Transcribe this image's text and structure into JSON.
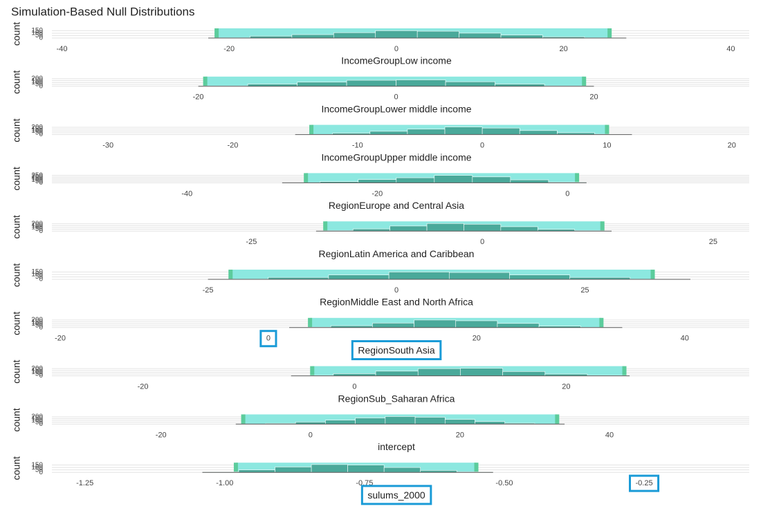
{
  "title": "Simulation-Based Null Distributions",
  "chart_data": [
    {
      "type": "histogram",
      "x_label": "IncomeGroupLow income",
      "y_label": "count",
      "xlim": [
        -41.2,
        42.2
      ],
      "xticks": [
        -40,
        -20,
        0,
        20,
        40
      ],
      "ylim": [
        0,
        170
      ],
      "yticks": [
        0,
        50,
        100,
        150
      ],
      "bins": [
        -22.5,
        -17.5,
        -12.5,
        -7.5,
        -2.5,
        2.5,
        7.5,
        12.5,
        17.5,
        22.5,
        27.5
      ],
      "counts": [
        5,
        40,
        70,
        110,
        150,
        140,
        100,
        60,
        25,
        5
      ],
      "color": "#4aa99a",
      "shade": [
        -21.5,
        25.5
      ],
      "shade_color": "#8ce8e0",
      "shade_edge_color": "#5ccc9c"
    },
    {
      "type": "histogram",
      "x_label": "IncomeGroupLower middle income",
      "y_label": "count",
      "xlim": [
        -34.8,
        35.7
      ],
      "xticks": [
        -20,
        0,
        20
      ],
      "ylim": [
        0,
        220
      ],
      "yticks": [
        0,
        50,
        100,
        150,
        200
      ],
      "bins": [
        -20,
        -15,
        -10,
        -5,
        0,
        5,
        10,
        15,
        20
      ],
      "counts": [
        10,
        60,
        110,
        160,
        170,
        120,
        60,
        10
      ],
      "color": "#4aa99a",
      "shade": [
        -19.3,
        19
      ],
      "shade_color": "#8ce8e0",
      "shade_edge_color": "#5ccc9c"
    },
    {
      "type": "histogram",
      "x_label": "IncomeGroupUpper middle income",
      "y_label": "count",
      "xlim": [
        -34.5,
        21.4
      ],
      "xticks": [
        -30,
        -20,
        -10,
        0,
        10,
        20
      ],
      "ylim": [
        0,
        230
      ],
      "yticks": [
        0,
        50,
        100,
        150,
        200
      ],
      "bins": [
        -15,
        -12,
        -9,
        -6,
        -3,
        0,
        3,
        6,
        9,
        12
      ],
      "counts": [
        5,
        40,
        90,
        150,
        210,
        180,
        110,
        50,
        10
      ],
      "color": "#4aa99a",
      "shade": [
        -13.7,
        10
      ],
      "shade_color": "#8ce8e0",
      "shade_edge_color": "#5ccc9c"
    },
    {
      "type": "histogram",
      "x_label": "RegionEurope and Central Asia",
      "y_label": "count",
      "xlim": [
        -54.2,
        19.1
      ],
      "xticks": [
        -40,
        -20,
        0
      ],
      "ylim": [
        0,
        280
      ],
      "yticks": [
        0,
        50,
        100,
        150,
        200,
        250
      ],
      "bins": [
        -30,
        -26,
        -22,
        -18,
        -14,
        -10,
        -6,
        -2,
        2
      ],
      "counts": [
        5,
        40,
        110,
        170,
        250,
        200,
        100,
        20
      ],
      "color": "#4aa99a",
      "shade": [
        -27.5,
        1
      ],
      "shade_color": "#8ce8e0",
      "shade_edge_color": "#5ccc9c"
    },
    {
      "type": "histogram",
      "x_label": "RegionLatin America and Caribbean",
      "y_label": "count",
      "xlim": [
        -46.6,
        28.9
      ],
      "xticks": [
        -25,
        0,
        25
      ],
      "ylim": [
        0,
        230
      ],
      "yticks": [
        0,
        50,
        100,
        150,
        200
      ],
      "bins": [
        -18,
        -14,
        -10,
        -6,
        -2,
        2,
        6,
        10,
        14
      ],
      "counts": [
        10,
        60,
        140,
        210,
        190,
        120,
        50,
        10
      ],
      "color": "#4aa99a",
      "shade": [
        -17,
        13
      ],
      "shade_color": "#8ce8e0",
      "shade_edge_color": "#5ccc9c"
    },
    {
      "type": "histogram",
      "x_label": "RegionMiddle East and North Africa",
      "y_label": "count",
      "xlim": [
        -45.7,
        46.8
      ],
      "xticks": [
        -25,
        0,
        25
      ],
      "ylim": [
        0,
        170
      ],
      "yticks": [
        0,
        50,
        100,
        150
      ],
      "bins": [
        -25,
        -17,
        -9,
        -1,
        7,
        15,
        23,
        31,
        39
      ],
      "counts": [
        5,
        40,
        90,
        150,
        140,
        90,
        40,
        5
      ],
      "color": "#4aa99a",
      "shade": [
        -22,
        34
      ],
      "shade_color": "#8ce8e0",
      "shade_edge_color": "#5ccc9c"
    },
    {
      "type": "histogram",
      "x_label": "RegionSouth Asia",
      "y_label": "count",
      "xlim": [
        -20.8,
        46.2
      ],
      "xticks": [
        -20,
        0,
        20,
        40
      ],
      "ylim": [
        0,
        220
      ],
      "yticks": [
        0,
        50,
        100,
        150,
        200
      ],
      "bins": [
        2,
        6,
        10,
        14,
        18,
        22,
        26,
        30,
        34
      ],
      "counts": [
        10,
        50,
        120,
        200,
        180,
        110,
        40,
        5
      ],
      "color": "#4aa99a",
      "shade": [
        4,
        32
      ],
      "shade_color": "#8ce8e0",
      "shade_edge_color": "#5ccc9c"
    },
    {
      "type": "histogram",
      "x_label": "RegionSub_Saharan Africa",
      "y_label": "count",
      "xlim": [
        -28.6,
        37.3
      ],
      "xticks": [
        -20,
        0,
        20
      ],
      "ylim": [
        0,
        230
      ],
      "yticks": [
        0,
        50,
        100,
        150,
        200
      ],
      "bins": [
        -6,
        -2,
        2,
        6,
        10,
        14,
        18,
        22,
        26
      ],
      "counts": [
        10,
        60,
        130,
        200,
        210,
        120,
        50,
        10
      ],
      "color": "#4aa99a",
      "shade": [
        -4,
        25.5
      ],
      "shade_color": "#8ce8e0",
      "shade_edge_color": "#5ccc9c"
    },
    {
      "type": "histogram",
      "x_label": "intercept",
      "y_label": "count",
      "xlim": [
        -34.6,
        58.7
      ],
      "xticks": [
        -20,
        0,
        20,
        40
      ],
      "ylim": [
        0,
        230
      ],
      "yticks": [
        0,
        50,
        100,
        150,
        200
      ],
      "bins": [
        -10,
        -6,
        -2,
        2,
        6,
        10,
        14,
        18,
        22,
        26,
        30,
        34
      ],
      "counts": [
        5,
        20,
        60,
        110,
        170,
        210,
        190,
        130,
        70,
        25,
        5
      ],
      "color": "#4aa99a",
      "shade": [
        -9,
        33
      ],
      "shade_color": "#8ce8e0",
      "shade_edge_color": "#5ccc9c"
    },
    {
      "type": "histogram",
      "x_label": "sulums_2000",
      "y_label": "count",
      "xlim": [
        -1.309,
        -0.062
      ],
      "xticks": [
        {
          "value": -1.25,
          "label": "-1.25"
        },
        {
          "value": -1,
          "label": "-1.00"
        },
        {
          "value": -0.75,
          "label": "-0.75"
        },
        {
          "value": -0.5,
          "label": "-0.50"
        },
        {
          "value": -0.25,
          "label": "-0.25"
        }
      ],
      "ylim": [
        0,
        170
      ],
      "yticks": [
        0,
        50,
        100,
        150
      ],
      "bins": [
        -1.04,
        -0.975,
        -0.91,
        -0.845,
        -0.78,
        -0.715,
        -0.65,
        -0.585,
        -0.52
      ],
      "counts": [
        10,
        50,
        110,
        160,
        150,
        100,
        40,
        10
      ],
      "color": "#4aa99a",
      "shade": [
        -0.98,
        -0.55
      ],
      "shade_color": "#8ce8e0",
      "shade_edge_color": "#5ccc9c"
    }
  ]
}
